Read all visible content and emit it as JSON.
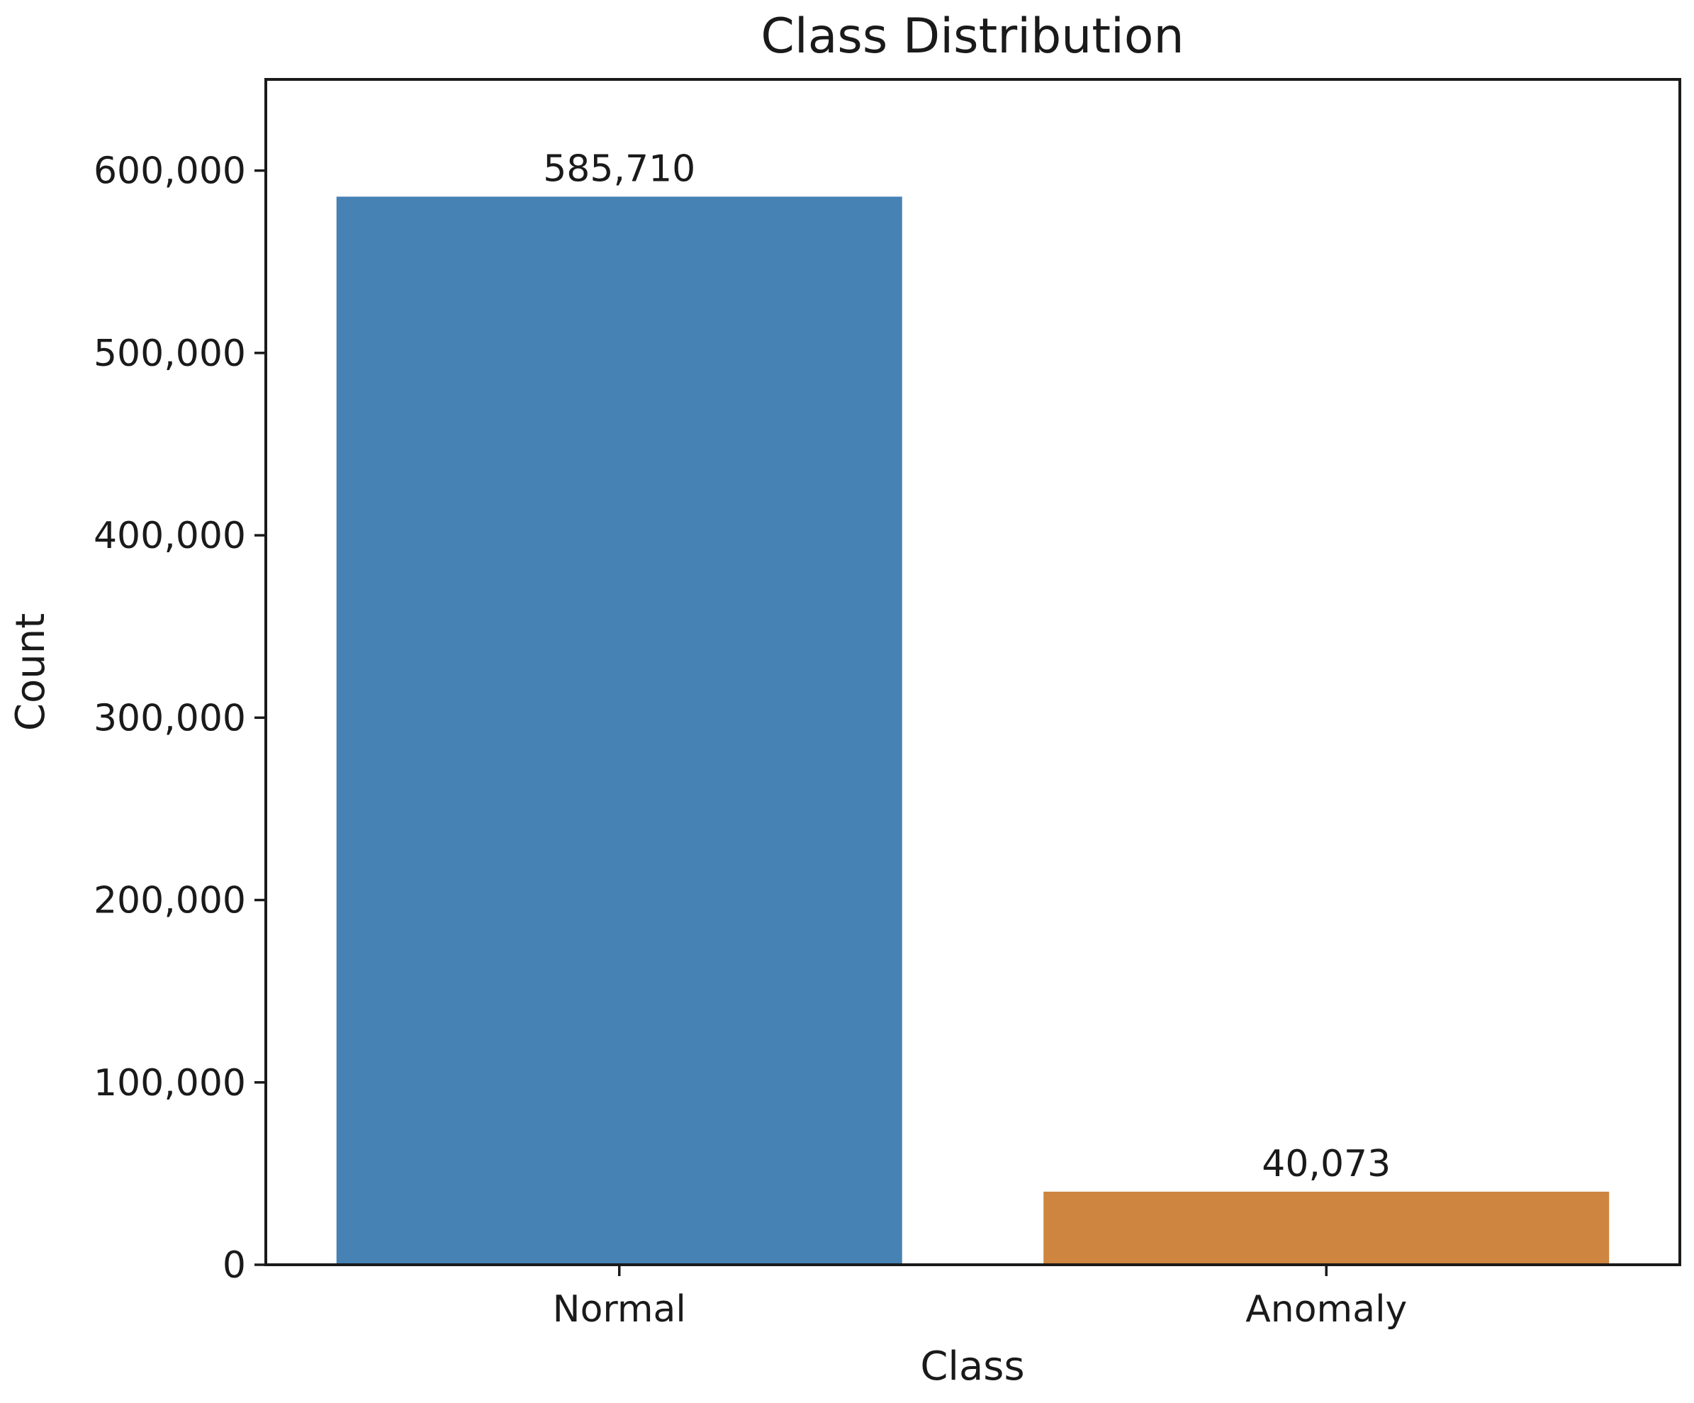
{
  "chart_data": {
    "type": "bar",
    "title": "Class Distribution",
    "xlabel": "Class",
    "ylabel": "Count",
    "categories": [
      "Normal",
      "Anomaly"
    ],
    "values": [
      585710,
      40073
    ],
    "value_labels": [
      "585,710",
      "40,073"
    ],
    "colors": [
      "#4682b4",
      "#cd853f"
    ],
    "ylim": [
      0,
      650000
    ],
    "yticks": [
      0,
      100000,
      200000,
      300000,
      400000,
      500000,
      600000
    ],
    "ytick_labels": [
      "0",
      "100,000",
      "200,000",
      "300,000",
      "400,000",
      "500,000",
      "600,000"
    ],
    "grid": false,
    "legend": "none"
  }
}
